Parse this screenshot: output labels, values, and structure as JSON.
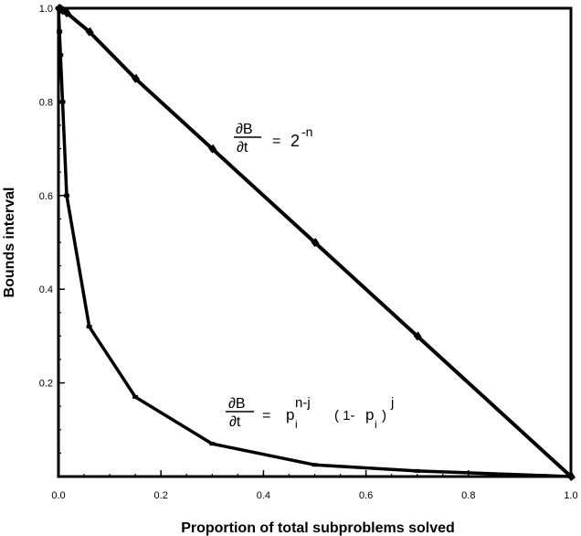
{
  "chart_data": {
    "type": "line",
    "xlabel": "Proportion of total subproblems solved",
    "ylabel": "Bounds interval",
    "xlim": [
      0,
      1
    ],
    "ylim": [
      0,
      1
    ],
    "x_ticks": [
      "0.0",
      "0.2",
      "0.4",
      "0.6",
      "0.8",
      "1.0"
    ],
    "y_ticks": [
      "0.2",
      "0.4",
      "0.6",
      "0.8",
      "1.0"
    ],
    "grid": false,
    "series": [
      {
        "x": [
          0.0,
          0.002,
          0.004,
          0.008,
          0.016,
          0.06,
          0.15,
          0.3,
          0.5,
          0.7,
          1.0
        ],
        "y": [
          1.0,
          0.999,
          0.998,
          0.995,
          0.99,
          0.95,
          0.85,
          0.7,
          0.5,
          0.3,
          0.0
        ],
        "color": "#000000"
      },
      {
        "x": [
          0.0,
          0.002,
          0.004,
          0.008,
          0.016,
          0.06,
          0.15,
          0.3,
          0.5,
          0.7,
          1.0
        ],
        "y": [
          1.0,
          0.95,
          0.9,
          0.8,
          0.6,
          0.32,
          0.17,
          0.07,
          0.025,
          0.012,
          0.0
        ],
        "color": "#000000"
      }
    ],
    "annotations": {
      "top": {
        "numerator": "∂B",
        "denominator": "∂t",
        "equals": "=",
        "base": "2",
        "exponent": "-n"
      },
      "bottom": {
        "numerator": "∂B",
        "denominator": "∂t",
        "equals": "=",
        "base1": "p",
        "sub1": "i",
        "exp1": "n-j",
        "paren_open": "( 1-",
        "base2": "p",
        "sub2": "i",
        "paren_close": ")",
        "exp2": "j"
      }
    }
  }
}
